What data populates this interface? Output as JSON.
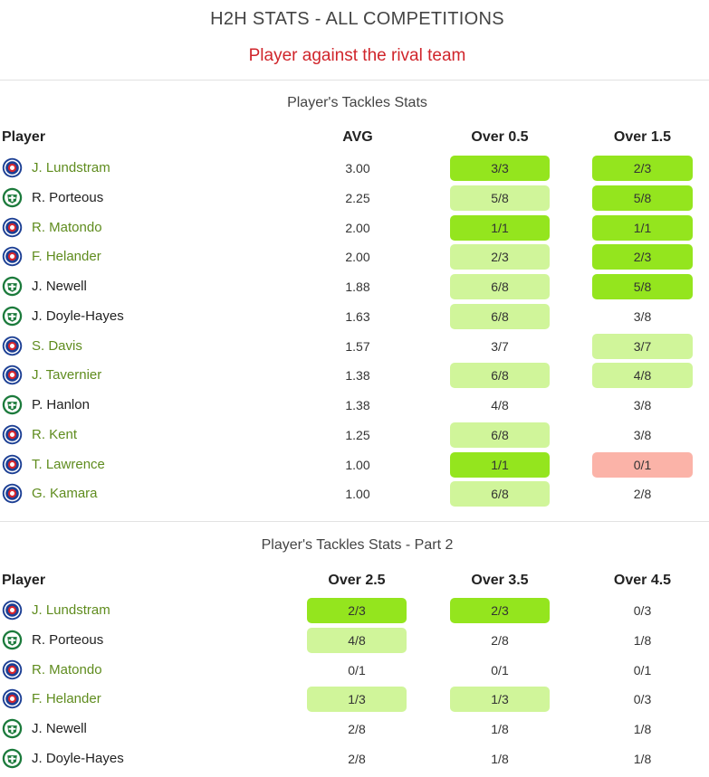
{
  "header": {
    "title": "H2H STATS - ALL COMPETITIONS",
    "subtitle": "Player against the rival team"
  },
  "colors": {
    "strong": "#94e51e",
    "medium": "#d0f59a",
    "low": "#fbb3a8",
    "subtitle": "#d0252b",
    "rangers_name": "#5f8c1e"
  },
  "icons": {
    "rangers": "rangers-crest-icon",
    "hibs": "hibernian-crest-icon"
  },
  "table1": {
    "title": "Player's Tackles Stats",
    "columns": [
      "Player",
      "AVG",
      "Over 0.5",
      "Over 1.5"
    ],
    "rows": [
      {
        "name": "J. Lundstram",
        "team": "rangers",
        "avg": "3.00",
        "cells": [
          {
            "v": "3/3",
            "c": "g"
          },
          {
            "v": "2/3",
            "c": "g"
          }
        ]
      },
      {
        "name": "R. Porteous",
        "team": "hibs",
        "avg": "2.25",
        "cells": [
          {
            "v": "5/8",
            "c": "l"
          },
          {
            "v": "5/8",
            "c": "g"
          }
        ]
      },
      {
        "name": "R. Matondo",
        "team": "rangers",
        "avg": "2.00",
        "cells": [
          {
            "v": "1/1",
            "c": "g"
          },
          {
            "v": "1/1",
            "c": "g"
          }
        ]
      },
      {
        "name": "F. Helander",
        "team": "rangers",
        "avg": "2.00",
        "cells": [
          {
            "v": "2/3",
            "c": "l"
          },
          {
            "v": "2/3",
            "c": "g"
          }
        ]
      },
      {
        "name": "J. Newell",
        "team": "hibs",
        "avg": "1.88",
        "cells": [
          {
            "v": "6/8",
            "c": "l"
          },
          {
            "v": "5/8",
            "c": "g"
          }
        ]
      },
      {
        "name": "J. Doyle-Hayes",
        "team": "hibs",
        "avg": "1.63",
        "cells": [
          {
            "v": "6/8",
            "c": "l"
          },
          {
            "v": "3/8",
            "c": "n"
          }
        ]
      },
      {
        "name": "S. Davis",
        "team": "rangers",
        "avg": "1.57",
        "cells": [
          {
            "v": "3/7",
            "c": "n"
          },
          {
            "v": "3/7",
            "c": "l"
          }
        ]
      },
      {
        "name": "J. Tavernier",
        "team": "rangers",
        "avg": "1.38",
        "cells": [
          {
            "v": "6/8",
            "c": "l"
          },
          {
            "v": "4/8",
            "c": "l"
          }
        ]
      },
      {
        "name": "P. Hanlon",
        "team": "hibs",
        "avg": "1.38",
        "cells": [
          {
            "v": "4/8",
            "c": "n"
          },
          {
            "v": "3/8",
            "c": "n"
          }
        ]
      },
      {
        "name": "R. Kent",
        "team": "rangers",
        "avg": "1.25",
        "cells": [
          {
            "v": "6/8",
            "c": "l"
          },
          {
            "v": "3/8",
            "c": "n"
          }
        ]
      },
      {
        "name": "T. Lawrence",
        "team": "rangers",
        "avg": "1.00",
        "cells": [
          {
            "v": "1/1",
            "c": "g"
          },
          {
            "v": "0/1",
            "c": "r"
          }
        ]
      },
      {
        "name": "G. Kamara",
        "team": "rangers",
        "avg": "1.00",
        "cells": [
          {
            "v": "6/8",
            "c": "l"
          },
          {
            "v": "2/8",
            "c": "n"
          }
        ]
      }
    ]
  },
  "table2": {
    "title": "Player's Tackles Stats - Part 2",
    "columns": [
      "Player",
      "Over 2.5",
      "Over 3.5",
      "Over 4.5"
    ],
    "rows": [
      {
        "name": "J. Lundstram",
        "team": "rangers",
        "cells": [
          {
            "v": "2/3",
            "c": "g"
          },
          {
            "v": "2/3",
            "c": "g"
          },
          {
            "v": "0/3",
            "c": "n"
          }
        ]
      },
      {
        "name": "R. Porteous",
        "team": "hibs",
        "cells": [
          {
            "v": "4/8",
            "c": "l"
          },
          {
            "v": "2/8",
            "c": "n"
          },
          {
            "v": "1/8",
            "c": "n"
          }
        ]
      },
      {
        "name": "R. Matondo",
        "team": "rangers",
        "cells": [
          {
            "v": "0/1",
            "c": "n"
          },
          {
            "v": "0/1",
            "c": "n"
          },
          {
            "v": "0/1",
            "c": "n"
          }
        ]
      },
      {
        "name": "F. Helander",
        "team": "rangers",
        "cells": [
          {
            "v": "1/3",
            "c": "l"
          },
          {
            "v": "1/3",
            "c": "l"
          },
          {
            "v": "0/3",
            "c": "n"
          }
        ]
      },
      {
        "name": "J. Newell",
        "team": "hibs",
        "cells": [
          {
            "v": "2/8",
            "c": "n"
          },
          {
            "v": "1/8",
            "c": "n"
          },
          {
            "v": "1/8",
            "c": "n"
          }
        ]
      },
      {
        "name": "J. Doyle-Hayes",
        "team": "hibs",
        "cells": [
          {
            "v": "2/8",
            "c": "n"
          },
          {
            "v": "1/8",
            "c": "n"
          },
          {
            "v": "1/8",
            "c": "n"
          }
        ]
      }
    ]
  }
}
